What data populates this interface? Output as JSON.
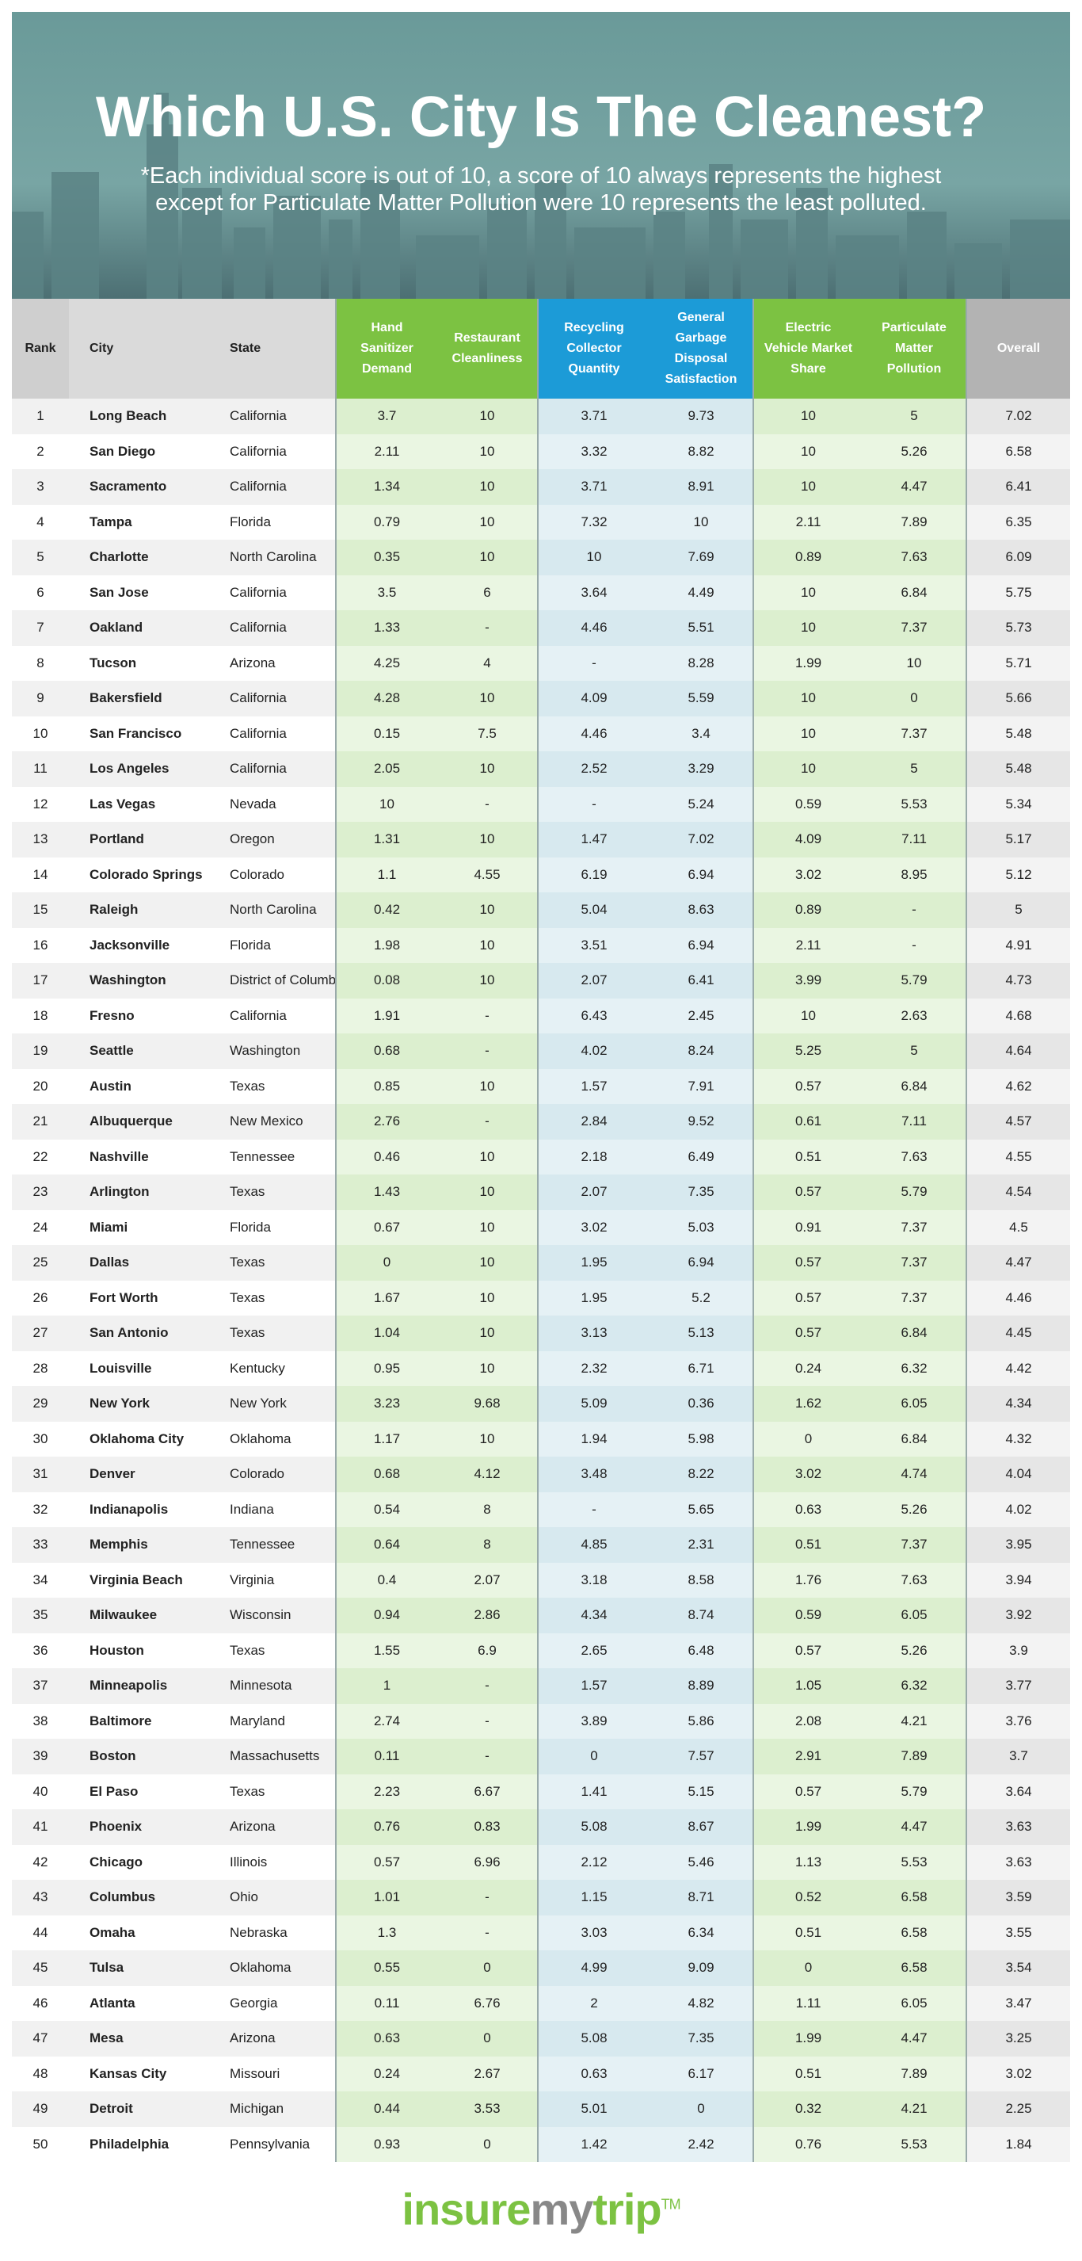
{
  "header": {
    "title": "Which U.S. City Is The Cleanest?",
    "subtitle": "*Each individual score is out of 10, a score of 10 always represents the highest except for Particulate Matter Pollution were 10 represents the least polluted."
  },
  "table": {
    "columns": [
      "Rank",
      "City",
      "State",
      "Hand Sanitizer Demand",
      "Restaurant Cleanliness",
      "Recycling Collector Quantity",
      "General Garbage Disposal Satisfaction",
      "Electric Vehicle Market Share",
      "Particulate Matter Pollution",
      "Overall"
    ],
    "rows": [
      [
        "1",
        "Long Beach",
        "California",
        "3.7",
        "10",
        "3.71",
        "9.73",
        "10",
        "5",
        "7.02"
      ],
      [
        "2",
        "San Diego",
        "California",
        "2.11",
        "10",
        "3.32",
        "8.82",
        "10",
        "5.26",
        "6.58"
      ],
      [
        "3",
        "Sacramento",
        "California",
        "1.34",
        "10",
        "3.71",
        "8.91",
        "10",
        "4.47",
        "6.41"
      ],
      [
        "4",
        "Tampa",
        "Florida",
        "0.79",
        "10",
        "7.32",
        "10",
        "2.11",
        "7.89",
        "6.35"
      ],
      [
        "5",
        "Charlotte",
        "North Carolina",
        "0.35",
        "10",
        "10",
        "7.69",
        "0.89",
        "7.63",
        "6.09"
      ],
      [
        "6",
        "San Jose",
        "California",
        "3.5",
        "6",
        "3.64",
        "4.49",
        "10",
        "6.84",
        "5.75"
      ],
      [
        "7",
        "Oakland",
        "California",
        "1.33",
        "-",
        "4.46",
        "5.51",
        "10",
        "7.37",
        "5.73"
      ],
      [
        "8",
        "Tucson",
        "Arizona",
        "4.25",
        "4",
        "-",
        "8.28",
        "1.99",
        "10",
        "5.71"
      ],
      [
        "9",
        "Bakersfield",
        "California",
        "4.28",
        "10",
        "4.09",
        "5.59",
        "10",
        "0",
        "5.66"
      ],
      [
        "10",
        "San Francisco",
        "California",
        "0.15",
        "7.5",
        "4.46",
        "3.4",
        "10",
        "7.37",
        "5.48"
      ],
      [
        "11",
        "Los Angeles",
        "California",
        "2.05",
        "10",
        "2.52",
        "3.29",
        "10",
        "5",
        "5.48"
      ],
      [
        "12",
        "Las Vegas",
        "Nevada",
        "10",
        "-",
        "-",
        "5.24",
        "0.59",
        "5.53",
        "5.34"
      ],
      [
        "13",
        "Portland",
        "Oregon",
        "1.31",
        "10",
        "1.47",
        "7.02",
        "4.09",
        "7.11",
        "5.17"
      ],
      [
        "14",
        "Colorado Springs",
        "Colorado",
        "1.1",
        "4.55",
        "6.19",
        "6.94",
        "3.02",
        "8.95",
        "5.12"
      ],
      [
        "15",
        "Raleigh",
        "North Carolina",
        "0.42",
        "10",
        "5.04",
        "8.63",
        "0.89",
        "-",
        "5"
      ],
      [
        "16",
        "Jacksonville",
        "Florida",
        "1.98",
        "10",
        "3.51",
        "6.94",
        "2.11",
        "-",
        "4.91"
      ],
      [
        "17",
        "Washington",
        "District of Columbia",
        "0.08",
        "10",
        "2.07",
        "6.41",
        "3.99",
        "5.79",
        "4.73"
      ],
      [
        "18",
        "Fresno",
        "California",
        "1.91",
        "-",
        "6.43",
        "2.45",
        "10",
        "2.63",
        "4.68"
      ],
      [
        "19",
        "Seattle",
        "Washington",
        "0.68",
        "-",
        "4.02",
        "8.24",
        "5.25",
        "5",
        "4.64"
      ],
      [
        "20",
        "Austin",
        "Texas",
        "0.85",
        "10",
        "1.57",
        "7.91",
        "0.57",
        "6.84",
        "4.62"
      ],
      [
        "21",
        "Albuquerque",
        "New Mexico",
        "2.76",
        "-",
        "2.84",
        "9.52",
        "0.61",
        "7.11",
        "4.57"
      ],
      [
        "22",
        "Nashville",
        "Tennessee",
        "0.46",
        "10",
        "2.18",
        "6.49",
        "0.51",
        "7.63",
        "4.55"
      ],
      [
        "23",
        "Arlington",
        "Texas",
        "1.43",
        "10",
        "2.07",
        "7.35",
        "0.57",
        "5.79",
        "4.54"
      ],
      [
        "24",
        "Miami",
        "Florida",
        "0.67",
        "10",
        "3.02",
        "5.03",
        "0.91",
        "7.37",
        "4.5"
      ],
      [
        "25",
        "Dallas",
        "Texas",
        "0",
        "10",
        "1.95",
        "6.94",
        "0.57",
        "7.37",
        "4.47"
      ],
      [
        "26",
        "Fort Worth",
        "Texas",
        "1.67",
        "10",
        "1.95",
        "5.2",
        "0.57",
        "7.37",
        "4.46"
      ],
      [
        "27",
        "San Antonio",
        "Texas",
        "1.04",
        "10",
        "3.13",
        "5.13",
        "0.57",
        "6.84",
        "4.45"
      ],
      [
        "28",
        "Louisville",
        "Kentucky",
        "0.95",
        "10",
        "2.32",
        "6.71",
        "0.24",
        "6.32",
        "4.42"
      ],
      [
        "29",
        "New York",
        "New York",
        "3.23",
        "9.68",
        "5.09",
        "0.36",
        "1.62",
        "6.05",
        "4.34"
      ],
      [
        "30",
        "Oklahoma City",
        "Oklahoma",
        "1.17",
        "10",
        "1.94",
        "5.98",
        "0",
        "6.84",
        "4.32"
      ],
      [
        "31",
        "Denver",
        "Colorado",
        "0.68",
        "4.12",
        "3.48",
        "8.22",
        "3.02",
        "4.74",
        "4.04"
      ],
      [
        "32",
        "Indianapolis",
        "Indiana",
        "0.54",
        "8",
        "-",
        "5.65",
        "0.63",
        "5.26",
        "4.02"
      ],
      [
        "33",
        "Memphis",
        "Tennessee",
        "0.64",
        "8",
        "4.85",
        "2.31",
        "0.51",
        "7.37",
        "3.95"
      ],
      [
        "34",
        "Virginia Beach",
        "Virginia",
        "0.4",
        "2.07",
        "3.18",
        "8.58",
        "1.76",
        "7.63",
        "3.94"
      ],
      [
        "35",
        "Milwaukee",
        "Wisconsin",
        "0.94",
        "2.86",
        "4.34",
        "8.74",
        "0.59",
        "6.05",
        "3.92"
      ],
      [
        "36",
        "Houston",
        "Texas",
        "1.55",
        "6.9",
        "2.65",
        "6.48",
        "0.57",
        "5.26",
        "3.9"
      ],
      [
        "37",
        "Minneapolis",
        "Minnesota",
        "1",
        "-",
        "1.57",
        "8.89",
        "1.05",
        "6.32",
        "3.77"
      ],
      [
        "38",
        "Baltimore",
        "Maryland",
        "2.74",
        "-",
        "3.89",
        "5.86",
        "2.08",
        "4.21",
        "3.76"
      ],
      [
        "39",
        "Boston",
        "Massachusetts",
        "0.11",
        "-",
        "0",
        "7.57",
        "2.91",
        "7.89",
        "3.7"
      ],
      [
        "40",
        "El Paso",
        "Texas",
        "2.23",
        "6.67",
        "1.41",
        "5.15",
        "0.57",
        "5.79",
        "3.64"
      ],
      [
        "41",
        "Phoenix",
        "Arizona",
        "0.76",
        "0.83",
        "5.08",
        "8.67",
        "1.99",
        "4.47",
        "3.63"
      ],
      [
        "42",
        "Chicago",
        "Illinois",
        "0.57",
        "6.96",
        "2.12",
        "5.46",
        "1.13",
        "5.53",
        "3.63"
      ],
      [
        "43",
        "Columbus",
        "Ohio",
        "1.01",
        "-",
        "1.15",
        "8.71",
        "0.52",
        "6.58",
        "3.59"
      ],
      [
        "44",
        "Omaha",
        "Nebraska",
        "1.3",
        "-",
        "3.03",
        "6.34",
        "0.51",
        "6.58",
        "3.55"
      ],
      [
        "45",
        "Tulsa",
        "Oklahoma",
        "0.55",
        "0",
        "4.99",
        "9.09",
        "0",
        "6.58",
        "3.54"
      ],
      [
        "46",
        "Atlanta",
        "Georgia",
        "0.11",
        "6.76",
        "2",
        "4.82",
        "1.11",
        "6.05",
        "3.47"
      ],
      [
        "47",
        "Mesa",
        "Arizona",
        "0.63",
        "0",
        "5.08",
        "7.35",
        "1.99",
        "4.47",
        "3.25"
      ],
      [
        "48",
        "Kansas City",
        "Missouri",
        "0.24",
        "2.67",
        "0.63",
        "6.17",
        "0.51",
        "7.89",
        "3.02"
      ],
      [
        "49",
        "Detroit",
        "Michigan",
        "0.44",
        "3.53",
        "5.01",
        "0",
        "0.32",
        "4.21",
        "2.25"
      ],
      [
        "50",
        "Philadelphia",
        "Pennsylvania",
        "0.93",
        "0",
        "1.42",
        "2.42",
        "0.76",
        "5.53",
        "1.84"
      ]
    ]
  },
  "footer": {
    "logo_part1": "insure",
    "logo_part2": "my",
    "logo_part3": "trip",
    "trademark": "TM"
  }
}
